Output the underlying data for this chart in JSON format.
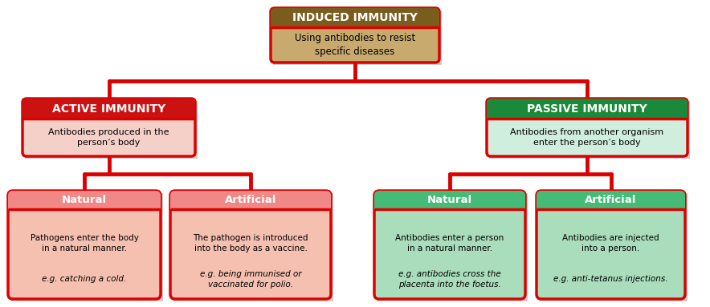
{
  "bg_color": "#ffffff",
  "red_border": "#dd0000",
  "green_border": "#cc0000",
  "top_header_bg": "#7a5c1e",
  "top_body_bg": "#c8a96e",
  "active_header_bg": "#cc1111",
  "active_body_bg": "#f5d0c8",
  "passive_header_bg": "#1a8a3a",
  "passive_body_bg": "#d0eedd",
  "nat_act_header": "#f08888",
  "nat_act_body": "#f5c0b0",
  "art_act_header": "#f08888",
  "art_act_body": "#f5c0b0",
  "nat_pas_header": "#44bb77",
  "nat_pas_body": "#aaddbb",
  "art_pas_header": "#44bb77",
  "art_pas_body": "#aaddbb",
  "red": "#dd0000",
  "green": "#117733",
  "top_title": "INDUCED IMMUNITY",
  "top_body": "Using antibodies to resist\nspecific diseases",
  "active_title": "ACTIVE IMMUNITY",
  "active_body": "Antibodies produced in the\nperson’s body",
  "passive_title": "PASSIVE IMMUNITY",
  "passive_body": "Antibodies from another organism\nenter the person’s body",
  "nat_active_title": "Natural",
  "nat_active_body1": "Pathogens enter the body\nin a natural manner.",
  "nat_active_body2": "e.g. catching a cold.",
  "art_active_title": "Artificial",
  "art_active_body1": "The pathogen is introduced\ninto the body as a vaccine.",
  "art_active_body2": "e.g. being immunised or\nvaccinated for polio.",
  "nat_passive_title": "Natural",
  "nat_passive_body1": "Antibodies enter a person\nin a natural manner.",
  "nat_passive_body2": "e.g. antibodies cross the\nplacenta into the foetus.",
  "art_passive_title": "Artificial",
  "art_passive_body1": "Antibodies are injected\ninto a person.",
  "art_passive_body2": "e.g. anti-tetanus injections."
}
